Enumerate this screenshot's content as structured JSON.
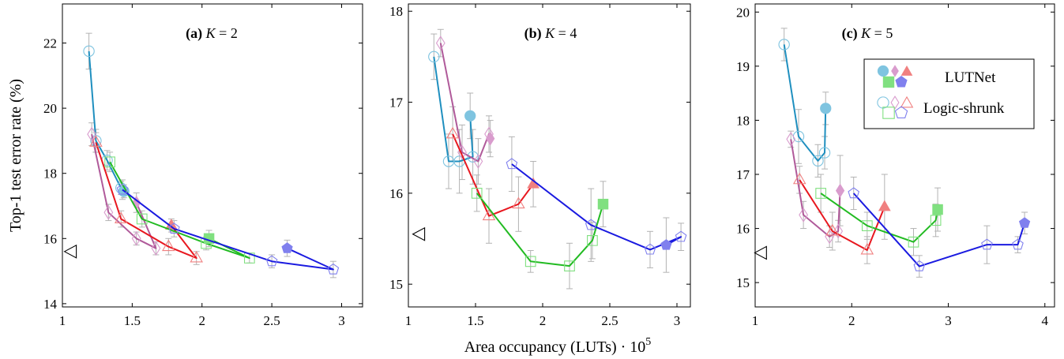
{
  "figure": {
    "y_label": "Top-1 test error rate (%)",
    "x_label_main": "Area occupancy (LUTs) · 10",
    "x_label_exp": "5",
    "legend": {
      "lutnet": "LUTNet",
      "logic_shrunk": "Logic-shrunk"
    }
  },
  "colors": {
    "cyan": "#1f8fbf",
    "cyan_marker": "#7fc4e0",
    "purple": "#b05a9a",
    "purple_marker": "#d99ccd",
    "red": "#e8171f",
    "red_marker": "#f08080",
    "green": "#22bb22",
    "green_marker": "#80e080",
    "blue": "#1a1ae0",
    "blue_marker": "#8080ee",
    "error_bar": "#b3b3b3"
  },
  "chart_data": [
    {
      "type": "line",
      "panel": "(a)",
      "title_label": "(a)",
      "title_k": "K",
      "title_value": "= 2",
      "xlim": [
        1,
        3.15
      ],
      "ylim": [
        13.9,
        23.2
      ],
      "xticks": [
        "1",
        "1.5",
        "2",
        "2.5",
        "3"
      ],
      "yticks": [
        "14",
        "16",
        "18",
        "20",
        "22"
      ],
      "baseline": {
        "x": 1.06,
        "y": 15.6
      },
      "series": [
        {
          "color": "cyan",
          "shape": "circle",
          "points": [
            [
              1.19,
              21.75
            ],
            [
              1.24,
              19.0
            ],
            [
              1.32,
              18.4
            ],
            [
              1.42,
              17.55
            ]
          ],
          "errors": [
            0.55,
            0.35,
            0.3,
            0.2
          ],
          "lutnet": {
            "x": 1.44,
            "y": 17.45,
            "err": 0.2
          }
        },
        {
          "color": "purple",
          "shape": "diamond",
          "points": [
            [
              1.21,
              19.2
            ],
            [
              1.33,
              16.8
            ],
            [
              1.53,
              16.0
            ],
            [
              1.67,
              15.7
            ]
          ],
          "errors": [
            0.35,
            0.25,
            0.2,
            0.2
          ],
          "lutnet": {
            "x": 1.53,
            "y": 17.1,
            "err": 0.3
          }
        },
        {
          "color": "red",
          "shape": "triangle",
          "points": [
            [
              1.24,
              18.95
            ],
            [
              1.42,
              16.6
            ],
            [
              1.76,
              15.75
            ],
            [
              1.96,
              15.4
            ]
          ],
          "errors": [
            0.3,
            0.25,
            0.25,
            0.2
          ],
          "lutnet": {
            "x": 1.78,
            "y": 16.4,
            "err": 0.2
          }
        },
        {
          "color": "green",
          "shape": "square",
          "points": [
            [
              1.34,
              18.35
            ],
            [
              1.57,
              16.6
            ],
            [
              2.03,
              15.85
            ],
            [
              2.34,
              15.4
            ]
          ],
          "errors": [
            0.3,
            0.25,
            0.2,
            0.15
          ],
          "lutnet": {
            "x": 2.05,
            "y": 16.0,
            "err": 0.25
          }
        },
        {
          "color": "blue",
          "shape": "pentagon",
          "points": [
            [
              1.43,
              17.5
            ],
            [
              1.8,
              16.3
            ],
            [
              2.5,
              15.3
            ],
            [
              2.94,
              15.05
            ]
          ],
          "errors": [
            0.3,
            0.25,
            0.2,
            0.25
          ],
          "lutnet": {
            "x": 2.61,
            "y": 15.7,
            "err": 0.25
          }
        }
      ]
    },
    {
      "type": "line",
      "panel": "(b)",
      "title_label": "(b)",
      "title_k": "K",
      "title_value": "= 4",
      "xlim": [
        1,
        3.1
      ],
      "ylim": [
        14.75,
        18.08
      ],
      "xticks": [
        "1",
        "1.5",
        "2",
        "2.5",
        "3"
      ],
      "yticks": [
        "15",
        "16",
        "17",
        "18"
      ],
      "baseline": {
        "x": 1.08,
        "y": 15.55
      },
      "series": [
        {
          "color": "cyan",
          "shape": "circle",
          "points": [
            [
              1.19,
              17.5
            ],
            [
              1.3,
              16.35
            ],
            [
              1.38,
              16.35
            ],
            [
              1.48,
              16.4
            ]
          ],
          "errors": [
            0.25,
            0.3,
            0.35,
            0.3
          ],
          "lutnet": {
            "x": 1.46,
            "y": 16.85,
            "err": 0.25
          }
        },
        {
          "color": "purple",
          "shape": "diamond",
          "points": [
            [
              1.24,
              17.65
            ],
            [
              1.4,
              16.45
            ],
            [
              1.52,
              16.35
            ],
            [
              1.6,
              16.65
            ]
          ],
          "errors": [
            0.15,
            0.3,
            0.25,
            0.2
          ],
          "lutnet": {
            "x": 1.61,
            "y": 16.6,
            "err": 0.2
          }
        },
        {
          "color": "red",
          "shape": "triangle",
          "points": [
            [
              1.33,
              16.65
            ],
            [
              1.6,
              15.75
            ],
            [
              1.82,
              15.88
            ]
          ],
          "errors": [
            0.3,
            0.3,
            0.3
          ],
          "lutnet": {
            "x": 1.93,
            "y": 16.1,
            "err": 0.25
          }
        },
        {
          "color": "green",
          "shape": "square",
          "points": [
            [
              1.51,
              16.0
            ],
            [
              1.91,
              15.25
            ],
            [
              2.2,
              15.2
            ],
            [
              2.37,
              15.48
            ]
          ],
          "errors": [
            0.2,
            0.12,
            0.25,
            0.2
          ],
          "lutnet": {
            "x": 2.45,
            "y": 15.88,
            "err": 0.25
          }
        },
        {
          "color": "blue",
          "shape": "pentagon",
          "points": [
            [
              1.77,
              16.32
            ],
            [
              2.36,
              15.65
            ],
            [
              2.8,
              15.38
            ],
            [
              3.03,
              15.52
            ]
          ],
          "errors": [
            0.3,
            0.4,
            0.2,
            0.15
          ],
          "lutnet": {
            "x": 2.92,
            "y": 15.43,
            "err": 0.3
          }
        }
      ]
    },
    {
      "type": "line",
      "panel": "(c)",
      "title_label": "(c)",
      "title_k": "K",
      "title_value": "= 5",
      "xlim": [
        1,
        4.1
      ],
      "ylim": [
        14.55,
        20.15
      ],
      "xticks": [
        "1",
        "2",
        "3",
        "4"
      ],
      "yticks": [
        "15",
        "16",
        "17",
        "18",
        "19",
        "20"
      ],
      "baseline": {
        "x": 1.06,
        "y": 15.55
      },
      "series": [
        {
          "color": "cyan",
          "shape": "circle",
          "points": [
            [
              1.3,
              19.4
            ],
            [
              1.45,
              17.7
            ],
            [
              1.65,
              17.25
            ],
            [
              1.72,
              17.4
            ]
          ],
          "errors": [
            0.3,
            0.5,
            0.3,
            0.3
          ],
          "lutnet": {
            "x": 1.73,
            "y": 18.22,
            "err": 0.3
          }
        },
        {
          "color": "purple",
          "shape": "diamond",
          "points": [
            [
              1.37,
              17.65
            ],
            [
              1.5,
              16.25
            ],
            [
              1.77,
              15.85
            ],
            [
              1.86,
              15.95
            ]
          ],
          "errors": [
            0.15,
            0.25,
            0.2,
            0.2
          ],
          "lutnet": {
            "x": 1.88,
            "y": 16.7,
            "err": 0.65
          }
        },
        {
          "color": "red",
          "shape": "triangle",
          "points": [
            [
              1.46,
              16.9
            ],
            [
              1.8,
              15.95
            ],
            [
              2.16,
              15.6
            ]
          ],
          "errors": [
            0.25,
            0.35,
            0.25
          ],
          "lutnet": {
            "x": 2.34,
            "y": 16.4,
            "err": 0.6
          }
        },
        {
          "color": "green",
          "shape": "square",
          "points": [
            [
              1.68,
              16.65
            ],
            [
              2.16,
              16.05
            ],
            [
              2.64,
              15.75
            ],
            [
              2.87,
              16.15
            ]
          ],
          "errors": [
            0.35,
            0.25,
            0.25,
            0.3
          ],
          "lutnet": {
            "x": 2.89,
            "y": 16.35,
            "err": 0.4
          }
        },
        {
          "color": "blue",
          "shape": "pentagon",
          "points": [
            [
              2.02,
              16.65
            ],
            [
              2.7,
              15.3
            ],
            [
              3.4,
              15.7
            ],
            [
              3.72,
              15.7
            ]
          ],
          "errors": [
            0.3,
            0.2,
            0.35,
            0.15
          ],
          "lutnet": {
            "x": 3.79,
            "y": 16.1,
            "err": 0.2
          }
        }
      ]
    }
  ]
}
